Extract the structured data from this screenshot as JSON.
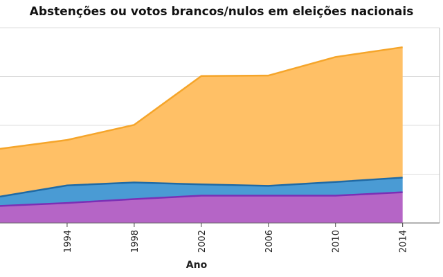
{
  "chart_data": {
    "type": "area",
    "stacked": true,
    "title": "Abstenções ou votos brancos/nulos em eleições nacionais",
    "xlabel": "Ano",
    "ylabel": "",
    "x": [
      1990,
      1994,
      1998,
      2002,
      2006,
      2010,
      2014
    ],
    "xticks": [
      "1994",
      "1998",
      "2002",
      "2006",
      "2010",
      "2014"
    ],
    "ylim": [
      0,
      40000000
    ],
    "grid": true,
    "series": [
      {
        "color": "#b565c6",
        "line_color": "#7b2fb5",
        "values": [
          3500000,
          4100000,
          4900000,
          5600000,
          5600000,
          5600000,
          6300000
        ]
      },
      {
        "color": "#4a9bd4",
        "line_color": "#1f6aa5",
        "values": [
          1900000,
          3600000,
          3400000,
          2300000,
          2000000,
          2800000,
          3000000
        ]
      },
      {
        "color": "#ffc066",
        "line_color": "#f5a52a",
        "values": [
          9800000,
          9300000,
          11800000,
          22200000,
          22600000,
          25600000,
          26700000
        ]
      }
    ]
  }
}
